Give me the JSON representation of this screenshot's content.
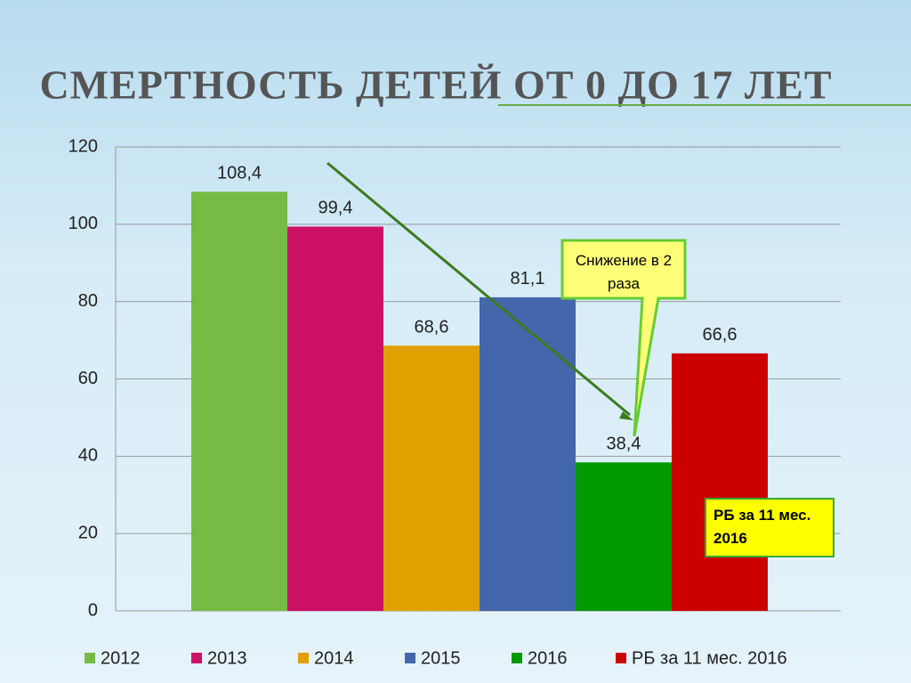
{
  "chart_data": {
    "type": "bar",
    "title": "СМЕРТНОСТЬ ДЕТЕЙ  ОТ 0 ДО 17 ЛЕТ",
    "series": [
      {
        "name": "2012",
        "color": "#77bb44",
        "values": [
          108.4
        ],
        "value_labels": [
          "108,4"
        ]
      },
      {
        "name": "2013",
        "color": "#cc1166",
        "values": [
          99.4
        ],
        "value_labels": [
          "99,4"
        ]
      },
      {
        "name": "2014",
        "color": "#e0a000",
        "values": [
          68.6
        ],
        "value_labels": [
          "68,6"
        ]
      },
      {
        "name": "2015",
        "color": "#4466aa",
        "values": [
          81.1
        ],
        "value_labels": [
          "81,1"
        ]
      },
      {
        "name": "2016",
        "color": "#009900",
        "values": [
          38.4
        ],
        "value_labels": [
          "38,4"
        ]
      },
      {
        "name": "РБ за 11 мес. 2016",
        "color": "#cc0000",
        "values": [
          66.6
        ],
        "value_labels": [
          "66,6"
        ]
      }
    ],
    "ylim": [
      0,
      120
    ],
    "yticks": [
      0,
      20,
      40,
      60,
      80,
      100,
      120
    ],
    "grid": true,
    "annotations": [
      "Снижение в 2 раза",
      "РБ за 11 мес. 2016"
    ]
  }
}
